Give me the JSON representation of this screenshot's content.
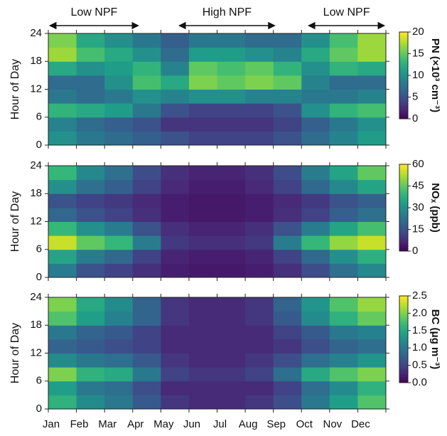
{
  "chart_data": [
    {
      "type": "heatmap",
      "ylabel": "Hour of Day",
      "colorbar_label": "PN (×10³ cm⁻³)",
      "colormap": "viridis",
      "annotations": [
        "Low NPF",
        "High NPF",
        "Low NPF"
      ],
      "ylim": [
        0,
        24
      ],
      "yticks": [
        0,
        6,
        12,
        18,
        24
      ],
      "y_bins": [
        0,
        3,
        6,
        9,
        12,
        15,
        18,
        21,
        24
      ],
      "clim": [
        0,
        20
      ],
      "cticks": [
        0,
        5,
        10,
        15,
        20
      ],
      "values": [
        [
          10,
          8,
          7,
          6,
          5,
          4,
          4,
          4,
          5,
          7,
          9,
          11
        ],
        [
          9,
          7,
          6,
          5,
          3,
          3,
          3,
          3,
          4,
          6,
          8,
          10
        ],
        [
          13,
          12,
          11,
          8,
          5,
          4,
          4,
          4,
          5,
          10,
          13,
          14
        ],
        [
          8,
          7,
          8,
          10,
          9,
          10,
          10,
          9,
          9,
          8,
          8,
          9
        ],
        [
          7,
          7,
          10,
          14,
          12,
          16,
          15,
          16,
          15,
          9,
          7,
          7
        ],
        [
          12,
          10,
          11,
          13,
          9,
          15,
          14,
          15,
          13,
          10,
          13,
          12
        ],
        [
          17,
          14,
          12,
          10,
          7,
          11,
          11,
          10,
          9,
          12,
          15,
          17
        ],
        [
          16,
          12,
          10,
          8,
          6,
          8,
          8,
          7,
          7,
          10,
          14,
          17
        ]
      ]
    },
    {
      "type": "heatmap",
      "ylabel": "Hour of Day",
      "colorbar_label": "NOₓ (ppb)",
      "colormap": "viridis",
      "ylim": [
        0,
        24
      ],
      "yticks": [
        0,
        6,
        12,
        18,
        24
      ],
      "y_bins": [
        0,
        3,
        6,
        9,
        12,
        15,
        18,
        21,
        24
      ],
      "clim": [
        0,
        60
      ],
      "cticks": [
        0,
        15,
        30,
        45,
        60
      ],
      "values": [
        [
          25,
          15,
          12,
          8,
          5,
          4,
          4,
          5,
          8,
          14,
          22,
          28
        ],
        [
          35,
          25,
          20,
          12,
          6,
          5,
          5,
          6,
          12,
          20,
          30,
          38
        ],
        [
          55,
          45,
          40,
          25,
          10,
          8,
          8,
          10,
          25,
          40,
          50,
          55
        ],
        [
          40,
          30,
          25,
          15,
          8,
          6,
          6,
          8,
          15,
          25,
          35,
          42
        ],
        [
          20,
          15,
          12,
          8,
          5,
          4,
          4,
          5,
          8,
          12,
          18,
          22
        ],
        [
          15,
          12,
          10,
          7,
          5,
          4,
          4,
          5,
          7,
          10,
          15,
          18
        ],
        [
          30,
          22,
          18,
          12,
          7,
          5,
          5,
          7,
          12,
          20,
          28,
          35
        ],
        [
          40,
          28,
          22,
          14,
          8,
          6,
          6,
          8,
          14,
          25,
          35,
          45
        ]
      ]
    },
    {
      "type": "heatmap",
      "ylabel": "Hour of Day",
      "colorbar_label": "BC (μg m⁻³)",
      "colormap": "viridis",
      "categories": [
        "Jan",
        "Feb",
        "Mar",
        "Apr",
        "May",
        "Jun",
        "Jul",
        "Aug",
        "Sep",
        "Oct",
        "Nov",
        "Dec"
      ],
      "ylim": [
        0,
        24
      ],
      "yticks": [
        0,
        6,
        12,
        18,
        24
      ],
      "y_bins": [
        0,
        3,
        6,
        9,
        12,
        15,
        18,
        21,
        24
      ],
      "clim": [
        0,
        2.5
      ],
      "cticks": [
        {
          "value": 0,
          "label": "0.0"
        },
        0.5,
        {
          "value": 1,
          "label": "1.0"
        },
        1.5,
        {
          "value": 2,
          "label": "2.0"
        },
        2.5
      ],
      "values": [
        [
          1.6,
          1.2,
          1.0,
          0.7,
          0.4,
          0.3,
          0.3,
          0.4,
          0.6,
          1.0,
          1.4,
          1.8
        ],
        [
          1.4,
          1.0,
          0.9,
          0.6,
          0.3,
          0.3,
          0.3,
          0.3,
          0.5,
          0.9,
          1.2,
          1.6
        ],
        [
          2.0,
          1.6,
          1.5,
          1.0,
          0.5,
          0.4,
          0.4,
          0.5,
          0.9,
          1.5,
          1.8,
          2.0
        ],
        [
          1.2,
          1.0,
          0.9,
          0.7,
          0.4,
          0.3,
          0.3,
          0.4,
          0.6,
          0.9,
          1.1,
          1.3
        ],
        [
          0.8,
          0.7,
          0.6,
          0.5,
          0.3,
          0.3,
          0.3,
          0.3,
          0.4,
          0.6,
          0.8,
          0.9
        ],
        [
          1.0,
          0.8,
          0.7,
          0.5,
          0.3,
          0.3,
          0.3,
          0.3,
          0.5,
          0.7,
          1.0,
          1.1
        ],
        [
          1.8,
          1.4,
          1.1,
          0.8,
          0.4,
          0.3,
          0.3,
          0.4,
          0.7,
          1.2,
          1.6,
          1.9
        ],
        [
          2.0,
          1.5,
          1.2,
          0.8,
          0.4,
          0.3,
          0.3,
          0.4,
          0.8,
          1.3,
          1.8,
          2.1
        ]
      ]
    }
  ]
}
